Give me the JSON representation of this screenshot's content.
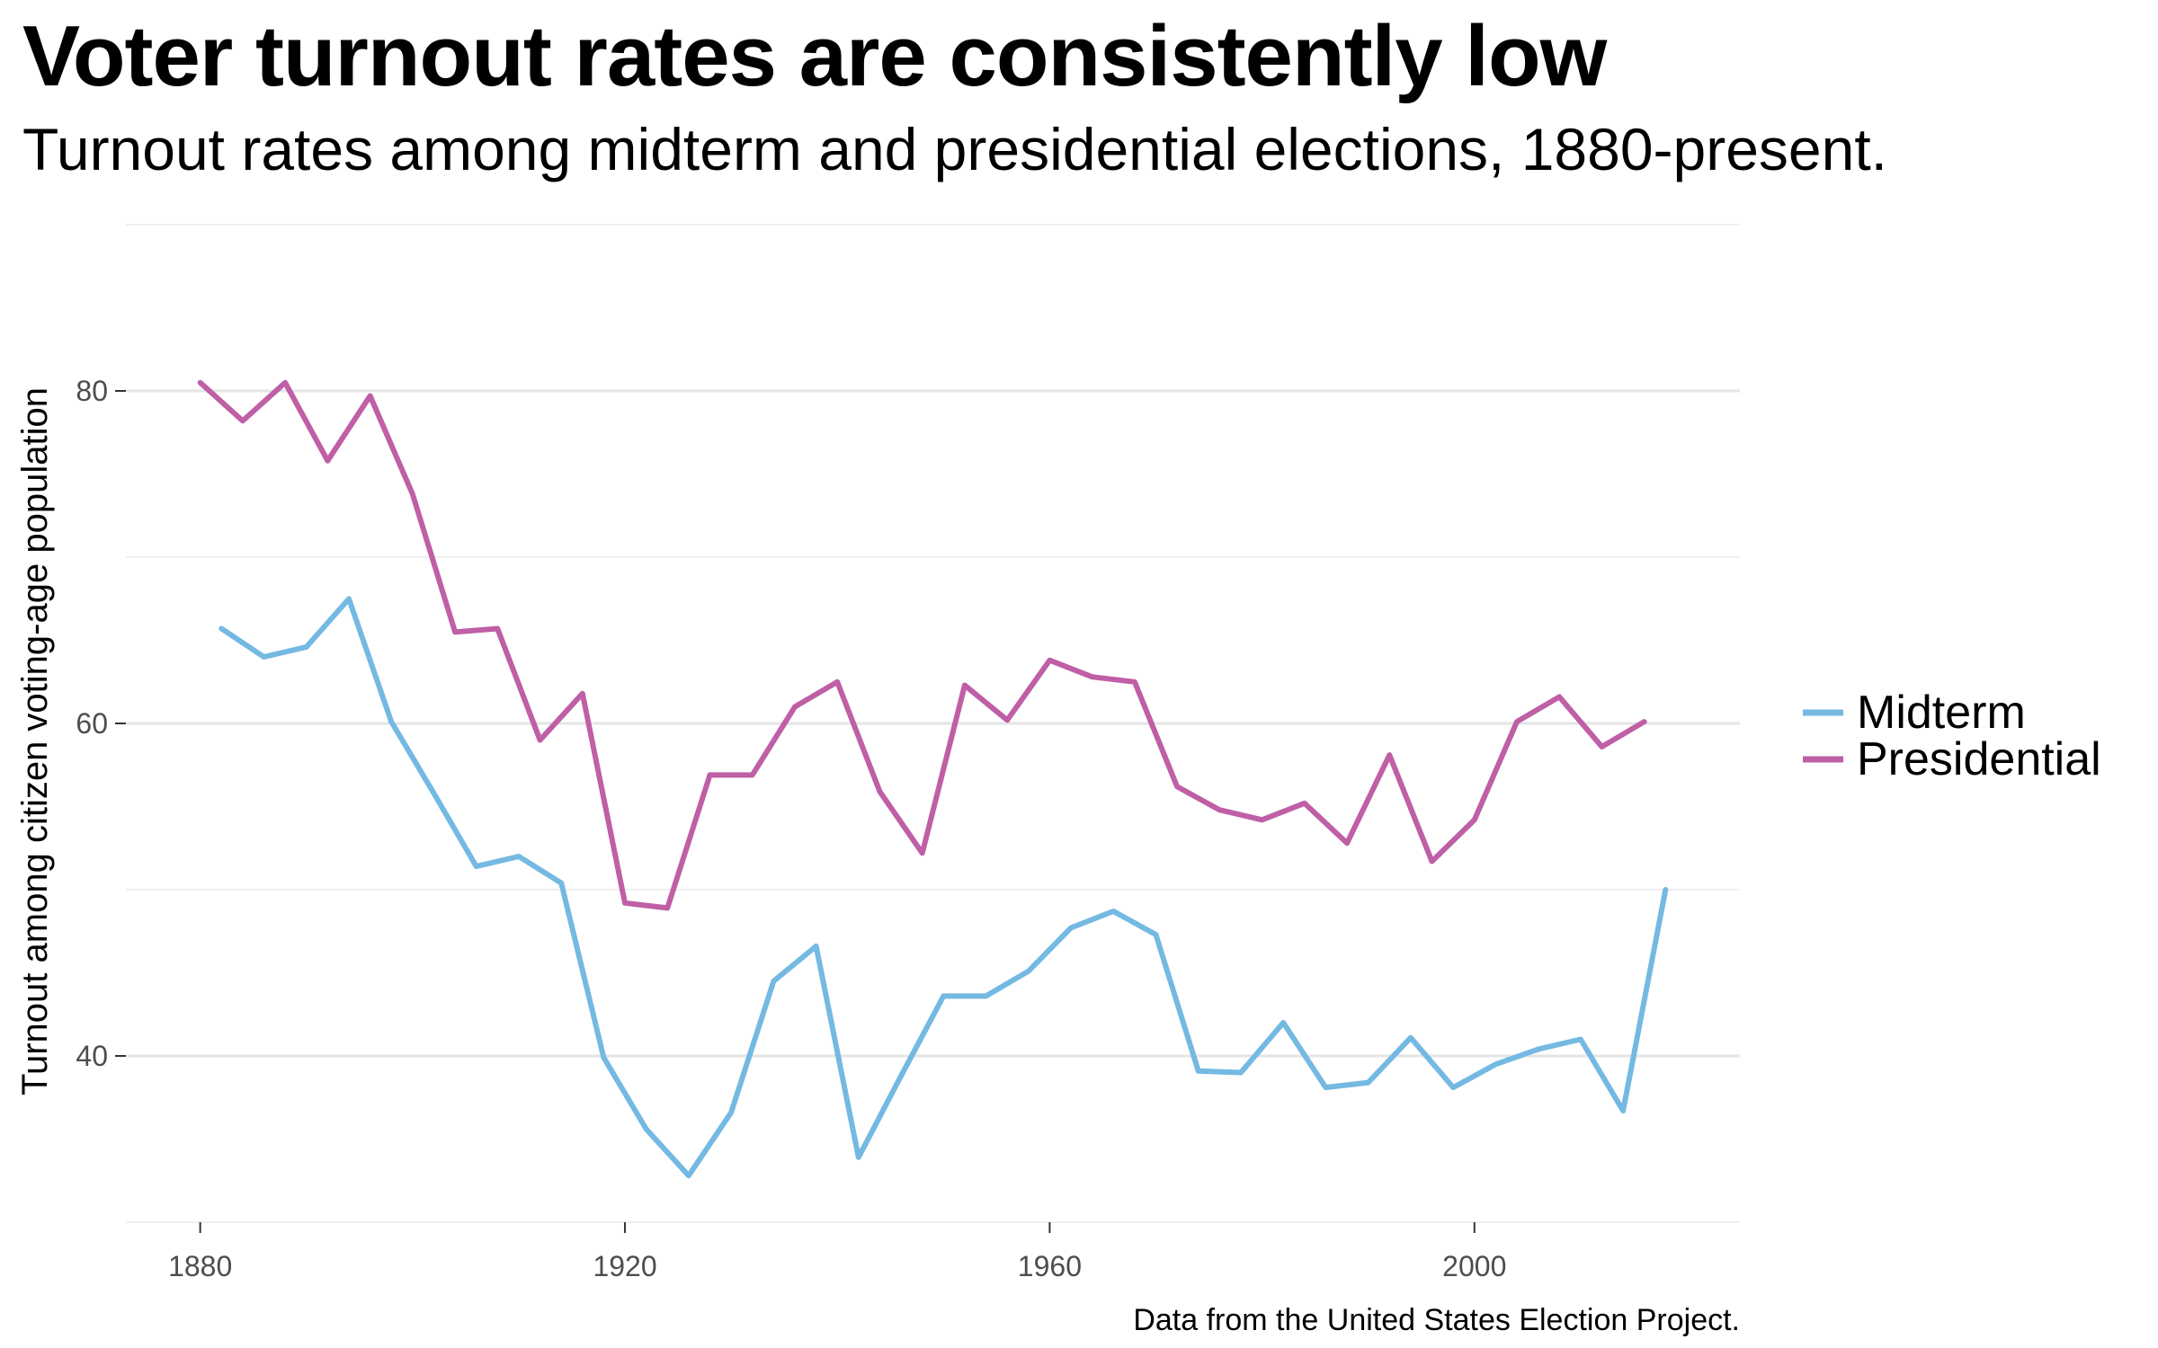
{
  "title": "Voter turnout rates are consistently low",
  "subtitle": "Turnout rates among midterm and presidential elections, 1880-present.",
  "caption": "Data from the United States Election Project.",
  "chart_data": {
    "type": "line",
    "title": "Voter turnout rates are consistently low",
    "subtitle": "Turnout rates among midterm and presidential elections, 1880-present.",
    "xlabel": "",
    "ylabel": "Turnout among citizen voting-age population",
    "xlim": [
      1873,
      2025
    ],
    "ylim": [
      30,
      90
    ],
    "x_ticks": [
      1880,
      1920,
      1960,
      2000
    ],
    "y_ticks": [
      40,
      60,
      80
    ],
    "grid": true,
    "legend_position": "right",
    "series": [
      {
        "name": "Midterm",
        "color": "#74B9E2",
        "points": [
          [
            1882,
            65.7
          ],
          [
            1886,
            64.0
          ],
          [
            1890,
            64.6
          ],
          [
            1894,
            67.5
          ],
          [
            1898,
            60.1
          ],
          [
            1902,
            55.8
          ],
          [
            1906,
            51.4
          ],
          [
            1910,
            52.0
          ],
          [
            1914,
            50.4
          ],
          [
            1918,
            39.9
          ],
          [
            1922,
            35.6
          ],
          [
            1926,
            32.8
          ],
          [
            1930,
            36.6
          ],
          [
            1934,
            44.5
          ],
          [
            1938,
            46.6
          ],
          [
            1942,
            33.9
          ],
          [
            1946,
            38.8
          ],
          [
            1950,
            43.6
          ],
          [
            1954,
            43.6
          ],
          [
            1958,
            45.1
          ],
          [
            1962,
            47.7
          ],
          [
            1966,
            48.7
          ],
          [
            1970,
            47.3
          ],
          [
            1974,
            39.1
          ],
          [
            1978,
            39.0
          ],
          [
            1982,
            42.0
          ],
          [
            1986,
            38.1
          ],
          [
            1990,
            38.4
          ],
          [
            1994,
            41.1
          ],
          [
            1998,
            38.1
          ],
          [
            2002,
            39.5
          ],
          [
            2006,
            40.4
          ],
          [
            2010,
            41.0
          ],
          [
            2014,
            36.7
          ],
          [
            2018,
            50.0
          ]
        ]
      },
      {
        "name": "Presidential",
        "color": "#BF5FA6",
        "points": [
          [
            1880,
            80.5
          ],
          [
            1884,
            78.2
          ],
          [
            1888,
            80.5
          ],
          [
            1892,
            75.8
          ],
          [
            1896,
            79.7
          ],
          [
            1900,
            73.8
          ],
          [
            1904,
            65.5
          ],
          [
            1908,
            65.7
          ],
          [
            1912,
            59.0
          ],
          [
            1916,
            61.8
          ],
          [
            1920,
            49.2
          ],
          [
            1924,
            48.9
          ],
          [
            1928,
            56.9
          ],
          [
            1932,
            56.9
          ],
          [
            1936,
            61.0
          ],
          [
            1940,
            62.5
          ],
          [
            1944,
            55.9
          ],
          [
            1948,
            52.2
          ],
          [
            1952,
            62.3
          ],
          [
            1956,
            60.2
          ],
          [
            1960,
            63.8
          ],
          [
            1964,
            62.8
          ],
          [
            1968,
            62.5
          ],
          [
            1972,
            56.2
          ],
          [
            1976,
            54.8
          ],
          [
            1980,
            54.2
          ],
          [
            1984,
            55.2
          ],
          [
            1988,
            52.8
          ],
          [
            1992,
            58.1
          ],
          [
            1996,
            51.7
          ],
          [
            2000,
            54.2
          ],
          [
            2004,
            60.1
          ],
          [
            2008,
            61.6
          ],
          [
            2012,
            58.6
          ],
          [
            2016,
            60.1
          ]
        ]
      }
    ]
  }
}
